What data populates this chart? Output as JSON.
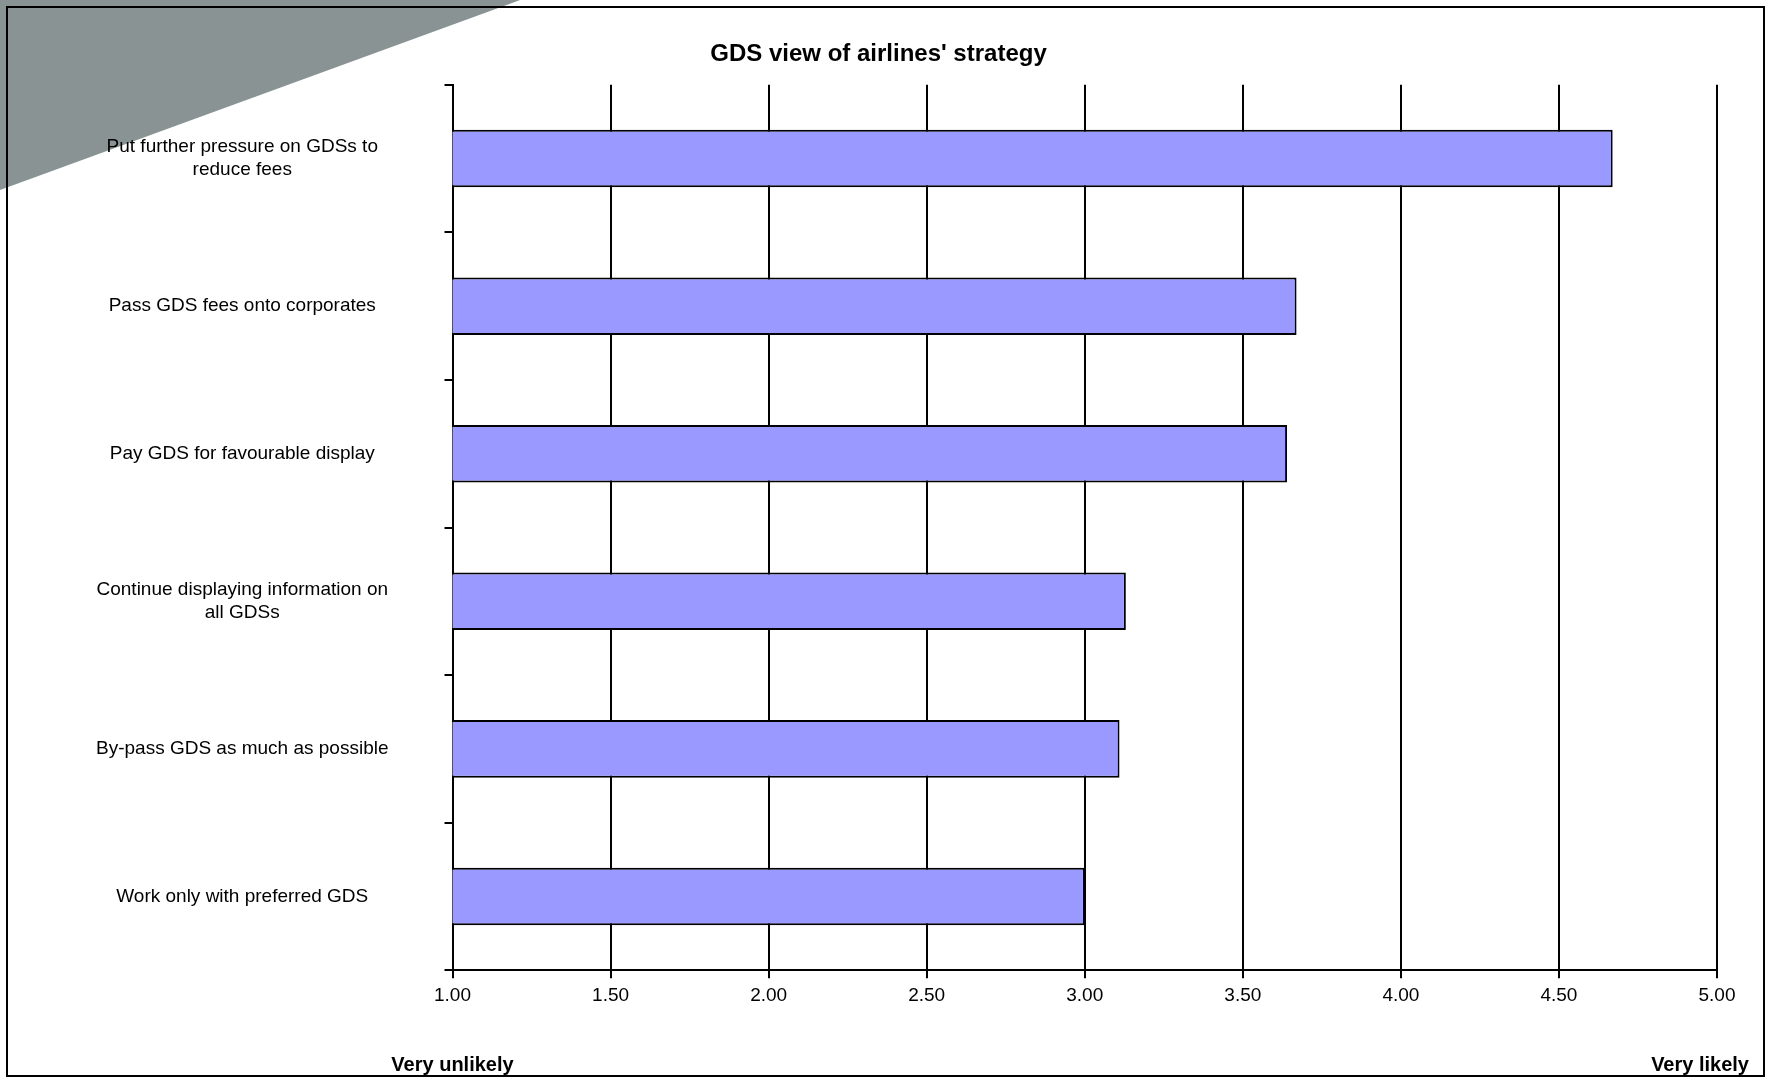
{
  "chart_data": {
    "type": "bar",
    "orientation": "horizontal",
    "title": "GDS view of airlines' strategy",
    "categories": [
      "Put further pressure on GDSs to reduce fees",
      "Pass GDS fees onto corporates",
      "Pay GDS for favourable display",
      "Continue displaying information on all GDSs",
      "By-pass GDS as much as possible",
      "Work only with preferred GDS"
    ],
    "values": [
      4.67,
      3.67,
      3.64,
      3.13,
      3.11,
      3.0
    ],
    "color": "#9999ff",
    "xlim": [
      1,
      5
    ],
    "xticks": [
      {
        "value": 1,
        "label": "1.00"
      },
      {
        "value": 1.5,
        "label": "1.50"
      },
      {
        "value": 2,
        "label": "2.00"
      },
      {
        "value": 2.5,
        "label": "2.50"
      },
      {
        "value": 3,
        "label": "3.00"
      },
      {
        "value": 3.5,
        "label": "3.50"
      },
      {
        "value": 4,
        "label": "4.00"
      },
      {
        "value": 4.5,
        "label": "4.50"
      },
      {
        "value": 5,
        "label": "5.00"
      }
    ],
    "grid": "x",
    "annotations": [
      "Very unlikely",
      "Very likely"
    ]
  }
}
